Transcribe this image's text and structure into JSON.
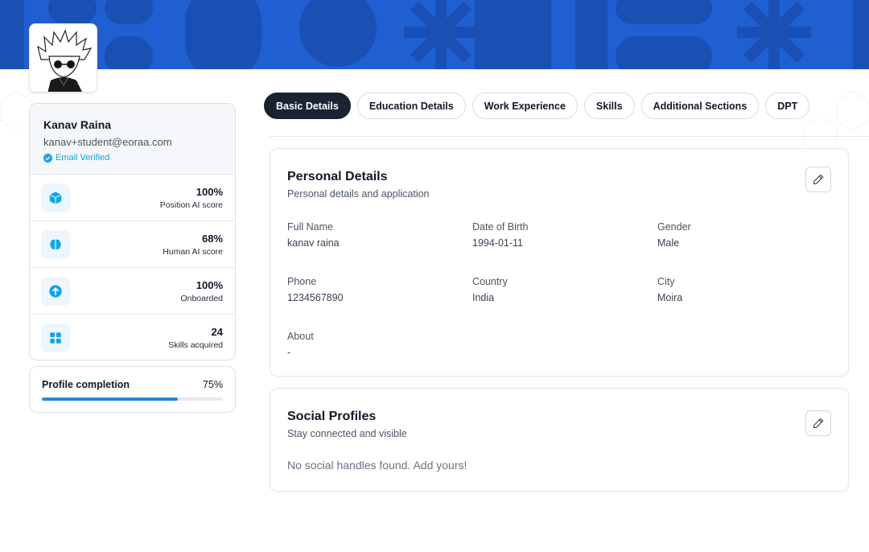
{
  "user": {
    "name": "Kanav Raina",
    "email": "kanav+student@eoraa.com",
    "verified_label": "Email Verified"
  },
  "stats": [
    {
      "value": "100%",
      "label": "Position AI score",
      "icon": "cube-icon"
    },
    {
      "value": "68%",
      "label": "Human AI score",
      "icon": "brain-icon"
    },
    {
      "value": "100%",
      "label": "Onboarded",
      "icon": "arrow-up-circle-icon"
    },
    {
      "value": "24",
      "label": "Skills acquired",
      "icon": "grid-icon"
    }
  ],
  "completion": {
    "title": "Profile completion",
    "percent_label": "75%",
    "percent": 75
  },
  "tabs": [
    {
      "label": "Basic Details",
      "active": true
    },
    {
      "label": "Education Details",
      "active": false
    },
    {
      "label": "Work Experience",
      "active": false
    },
    {
      "label": "Skills",
      "active": false
    },
    {
      "label": "Additional Sections",
      "active": false
    },
    {
      "label": "DPT",
      "active": false
    }
  ],
  "personal": {
    "title": "Personal Details",
    "subtitle": "Personal details and application",
    "fields": [
      {
        "label": "Full Name",
        "value": "kanav raina"
      },
      {
        "label": "Date of Birth",
        "value": "1994-01-11"
      },
      {
        "label": "Gender",
        "value": "Male"
      },
      {
        "label": "Phone",
        "value": "1234567890"
      },
      {
        "label": "Country",
        "value": "India"
      },
      {
        "label": "City",
        "value": "Moira"
      },
      {
        "label": "About",
        "value": "-"
      }
    ]
  },
  "social": {
    "title": "Social Profiles",
    "subtitle": "Stay connected and visible",
    "empty_message": "No social handles found. Add yours!"
  },
  "colors": {
    "banner": "#1f5fd1",
    "banner_shapes": "#1a4fb3",
    "accent": "#0ea5e9",
    "progress": "#1e88e5",
    "active_tab": "#1a2332"
  }
}
